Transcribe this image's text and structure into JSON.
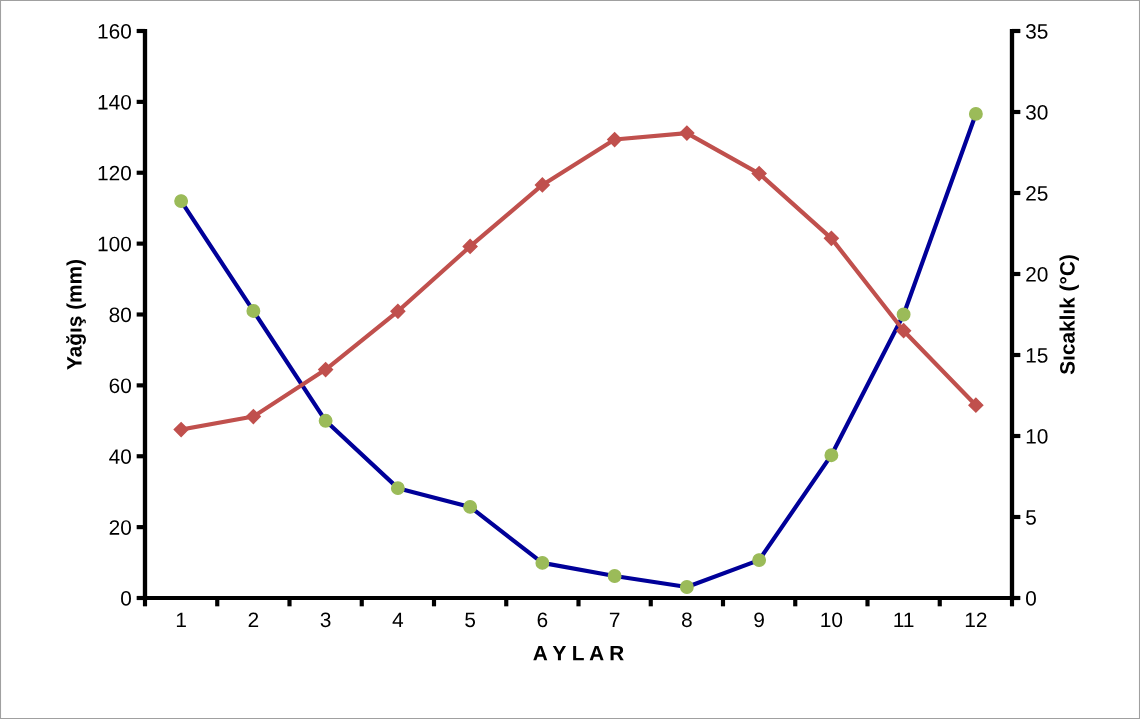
{
  "chart_data": {
    "type": "line",
    "xlabel": "A Y L A R",
    "ylabel": "Yağış (mm)",
    "y2label": "Sıcaklık (°C)",
    "categories": [
      "1",
      "2",
      "3",
      "4",
      "5",
      "6",
      "7",
      "8",
      "9",
      "10",
      "11",
      "12"
    ],
    "series": [
      {
        "color": "#000099",
        "colors": [
          "#9bbb59",
          "#9bbb59",
          "#9bbb59",
          "#9bbb59",
          "#9bbb59",
          "#9bbb59",
          "#9bbb59",
          "#9bbb59",
          "#9bbb59",
          "#9bbb59",
          "#9bbb59",
          "#9bbb59"
        ],
        "marker": "circle",
        "values": [
          112,
          81,
          50,
          31,
          25.7,
          9.9,
          6.2,
          3.1,
          10.7,
          40.3,
          80,
          136.6
        ]
      },
      {
        "color": "#c0504d",
        "marker": "diamond",
        "axis": "y2",
        "values": [
          10.4,
          11.2,
          14.1,
          17.7,
          21.7,
          25.5,
          28.3,
          28.7,
          26.2,
          22.2,
          16.5,
          11.9
        ]
      }
    ],
    "ylim": [
      0,
      160
    ],
    "yticks": [
      0,
      20,
      40,
      60,
      80,
      100,
      120,
      140,
      160
    ],
    "y2lim": [
      0,
      35
    ],
    "y2ticks": [
      0,
      5,
      10,
      15,
      20,
      25,
      30,
      35
    ],
    "grid": false,
    "legend": false
  }
}
